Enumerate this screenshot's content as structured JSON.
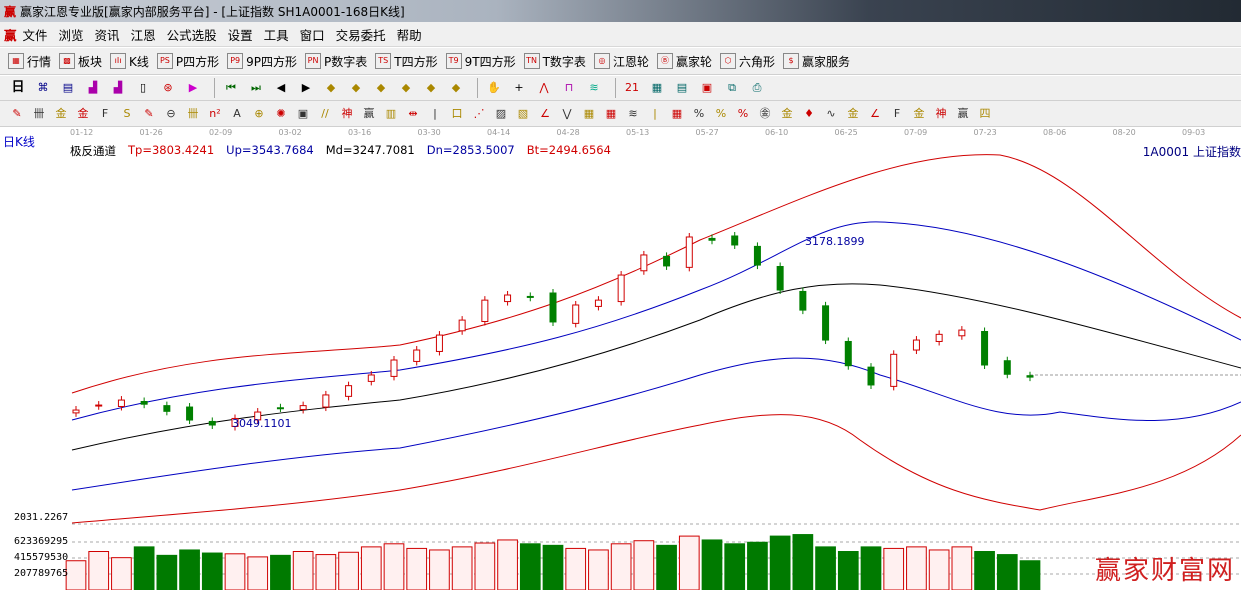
{
  "window": {
    "title": "赢家江恩专业版[赢家内部服务平台] - [上证指数  SH1A0001-168日K线]",
    "logo": "赢"
  },
  "menu": [
    "文件",
    "浏览",
    "资讯",
    "江恩",
    "公式选股",
    "设置",
    "工具",
    "窗口",
    "交易委托",
    "帮助"
  ],
  "toolbar1": [
    {
      "icon": "grid-icon",
      "glyph": "▦",
      "label": "行情"
    },
    {
      "icon": "blocks-icon",
      "glyph": "▩",
      "label": "板块"
    },
    {
      "icon": "candle-icon",
      "glyph": "ıIı",
      "label": "K线"
    },
    {
      "icon": "ps-icon",
      "glyph": "PS",
      "label": "P四方形"
    },
    {
      "icon": "p9-icon",
      "glyph": "P9",
      "label": "9P四方形"
    },
    {
      "icon": "pn-icon",
      "glyph": "PN",
      "label": "P数字表"
    },
    {
      "icon": "ts-icon",
      "glyph": "TS",
      "label": "T四方形"
    },
    {
      "icon": "t9-icon",
      "glyph": "T9",
      "label": "9T四方形"
    },
    {
      "icon": "tn-icon",
      "glyph": "TN",
      "label": "T数字表"
    },
    {
      "icon": "target-icon",
      "glyph": "◎",
      "label": "江恩轮"
    },
    {
      "icon": "wheel-icon",
      "glyph": "Ⓑ",
      "label": "赢家轮"
    },
    {
      "icon": "hexagon-icon",
      "glyph": "⬡",
      "label": "六角形"
    },
    {
      "icon": "dollar-icon",
      "glyph": "$",
      "label": "赢家服务"
    }
  ],
  "toolbar2": {
    "period": "日",
    "icons": [
      "chart-icon",
      "doc-icon",
      "bars3-icon",
      "bars9-icon",
      "candle-select-icon",
      "zoom-icon",
      "flag-icon",
      "first-icon",
      "last-icon",
      "left-icon",
      "right-icon",
      "diamond1-icon",
      "diamond2-icon",
      "diamond3-icon",
      "diamond4-icon",
      "diamond5-icon",
      "diamond6-icon",
      "hand-icon",
      "crosshair-icon",
      "line-icon",
      "node-icon",
      "line2-icon",
      "calendar-icon",
      "calculator-icon",
      "list-icon",
      "save-icon",
      "network-icon",
      "print-icon"
    ],
    "glyphs": [
      "⌘",
      "▤",
      "▟",
      "▟",
      "▯",
      "⊛",
      "▶",
      "⏮",
      "⏭",
      "◀",
      "▶",
      "◆",
      "◆",
      "◆",
      "◆",
      "◆",
      "◆",
      "✋",
      "+",
      "⋀",
      "⊓",
      "≋",
      "21",
      "▦",
      "▤",
      "▣",
      "⧉",
      "⎙"
    ]
  },
  "toolbar3": {
    "glyphs": [
      "✎",
      "卌",
      "金",
      "金",
      "F",
      "S",
      "✎",
      "⊖",
      "卌",
      "n²",
      "A",
      "⊕",
      "✺",
      "▣",
      "//",
      "神",
      "赢",
      "▥",
      "⇹",
      "|",
      "口",
      "⋰",
      "▨",
      "▧",
      "∠",
      "⋁",
      "▦",
      "▦",
      "≋",
      "|",
      "▦",
      "%",
      "%",
      "%",
      "㊎",
      "金",
      "♦",
      "∿",
      "金",
      "∠",
      "F",
      "金",
      "神",
      "赢",
      "四"
    ]
  },
  "date_axis": [
    "01-12",
    "01-26",
    "02-09",
    "03-02",
    "03-16",
    "03-30",
    "04-14",
    "04-28",
    "05-13",
    "05-27",
    "06-10",
    "06-25",
    "07-09",
    "07-23",
    "08-06",
    "08-20",
    "09-03"
  ],
  "period_label": "日K线",
  "indicator": {
    "name": "极反通道",
    "Tp": "Tp=3803.4241",
    "Up": "Up=3543.7684",
    "Md": "Md=3247.7081",
    "Dn": "Dn=2853.5007",
    "Bt": "Bt=2494.6564"
  },
  "symbol": "1A0001  上证指数",
  "colors": {
    "up": "#d00000",
    "down": "#008000",
    "band_outer": "#d00000",
    "band_inner": "#0000c0",
    "mid": "#000000"
  },
  "chart_data": {
    "type": "candlestick",
    "annotations": {
      "high": "3178.1899",
      "low": "3049.1101"
    },
    "close": [
      3058.9,
      3062.4,
      3065.9,
      3063,
      3058,
      3051.9,
      3048.4,
      3053,
      3057.5,
      3060.3,
      3062,
      3069.5,
      3076,
      3083.5,
      3094,
      3101,
      3111.5,
      3122,
      3136,
      3139.6,
      3138,
      3120.7,
      3132.6,
      3136,
      3153.6,
      3167.7,
      3160,
      3180.3,
      3178,
      3174.7,
      3160.6,
      3143.1,
      3129,
      3108,
      3090,
      3076.5,
      3098,
      3108,
      3112,
      3115,
      3090.5,
      3084,
      3082
    ],
    "volume_axis": [
      "2031.2267",
      "623369295",
      "415579530",
      "207789765"
    ],
    "volume": [
      380,
      500,
      420,
      560,
      450,
      520,
      480,
      470,
      430,
      450,
      500,
      460,
      490,
      560,
      600,
      540,
      520,
      560,
      610,
      650,
      600,
      580,
      540,
      520,
      600,
      640,
      580,
      700,
      650,
      600,
      620,
      700,
      720,
      560,
      500,
      560,
      540,
      560,
      520,
      560,
      500,
      460,
      380
    ]
  },
  "watermark": "赢家财富网"
}
